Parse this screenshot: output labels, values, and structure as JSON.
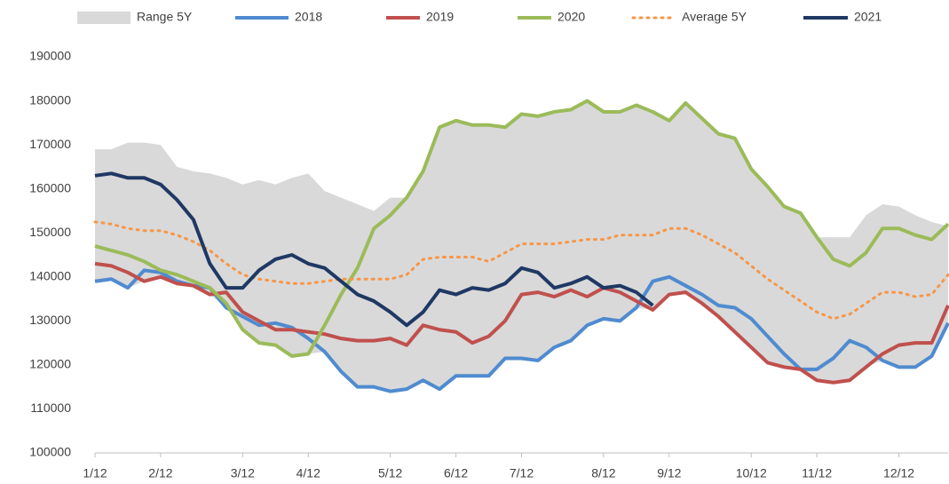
{
  "chart_data": {
    "type": "line",
    "categories": [
      "1/12",
      null,
      null,
      null,
      "2/12",
      null,
      null,
      null,
      null,
      "3/12",
      null,
      null,
      null,
      "4/12",
      null,
      null,
      null,
      null,
      "5/12",
      null,
      null,
      null,
      "6/12",
      null,
      null,
      null,
      "7/12",
      null,
      null,
      null,
      null,
      "8/12",
      null,
      null,
      null,
      "9/12",
      null,
      null,
      null,
      null,
      "10/12",
      null,
      null,
      null,
      "11/12",
      null,
      null,
      null,
      null,
      "12/12",
      null,
      null,
      null
    ],
    "ylim": [
      100000,
      190000
    ],
    "yticks": [
      100000,
      110000,
      120000,
      130000,
      140000,
      150000,
      160000,
      170000,
      180000,
      190000
    ],
    "grid": false,
    "legend": "top",
    "series": [
      {
        "name": "Range 5Y",
        "color": "#d9d9d9",
        "high": [
          169000,
          169000,
          170500,
          170500,
          170000,
          165000,
          164000,
          163500,
          162500,
          161000,
          162000,
          161000,
          162500,
          163500,
          159500,
          158000,
          156500,
          155000,
          158000,
          158000,
          164000,
          174000,
          175500,
          174500,
          174500,
          174000,
          177000,
          176500,
          177500,
          178000,
          180000,
          177500,
          177500,
          179000,
          177500,
          175500,
          179500,
          176000,
          172500,
          171500,
          164500,
          160500,
          156000,
          154500,
          149000,
          149000,
          149000,
          154000,
          156500,
          156000,
          154000,
          152500,
          151500
        ],
        "low": [
          139000,
          139500,
          137500,
          139000,
          140000,
          138500,
          138000,
          136000,
          133000,
          128000,
          125000,
          124500,
          122000,
          122500,
          123000,
          118500,
          115000,
          115000,
          114000,
          114500,
          116500,
          114500,
          117500,
          117500,
          117500,
          121500,
          121500,
          121000,
          124000,
          125500,
          129000,
          130500,
          130000,
          133000,
          132500,
          136000,
          136500,
          134000,
          131000,
          127500,
          124000,
          120500,
          119500,
          119000,
          116500,
          116000,
          116500,
          119500,
          121000,
          119500,
          119500,
          122000,
          129500
        ]
      },
      {
        "name": "2018",
        "color": "#4f8bd0",
        "values": [
          139000,
          139500,
          137500,
          141500,
          141000,
          139000,
          138000,
          137500,
          133000,
          131000,
          129000,
          129500,
          128500,
          126000,
          123000,
          118500,
          115000,
          115000,
          114000,
          114500,
          116500,
          114500,
          117500,
          117500,
          117500,
          121500,
          121500,
          121000,
          124000,
          125500,
          129000,
          130500,
          130000,
          133000,
          139000,
          140000,
          138000,
          136000,
          133500,
          133000,
          130500,
          126500,
          122500,
          119000,
          119000,
          121500,
          125500,
          124000,
          121000,
          119500,
          119500,
          122000,
          129500
        ]
      },
      {
        "name": "2019",
        "color": "#c0504d",
        "values": [
          143000,
          142500,
          141000,
          139000,
          140000,
          138500,
          138000,
          136000,
          136500,
          132000,
          130000,
          128000,
          128000,
          127500,
          127000,
          126000,
          125500,
          125500,
          126000,
          124500,
          129000,
          128000,
          127500,
          125000,
          126500,
          130000,
          136000,
          136500,
          135500,
          137000,
          135500,
          137500,
          136500,
          134500,
          132500,
          136000,
          136500,
          134000,
          131000,
          127500,
          124000,
          120500,
          119500,
          119000,
          116500,
          116000,
          116500,
          119500,
          122500,
          124500,
          125000,
          125000,
          133500
        ]
      },
      {
        "name": "2020",
        "color": "#9bbb59",
        "values": [
          147000,
          146000,
          145000,
          143500,
          141500,
          140500,
          139000,
          137500,
          134000,
          128000,
          125000,
          124500,
          122000,
          122500,
          129000,
          136000,
          142000,
          151000,
          154000,
          158000,
          164000,
          174000,
          175500,
          174500,
          174500,
          174000,
          177000,
          176500,
          177500,
          178000,
          180000,
          177500,
          177500,
          179000,
          177500,
          175500,
          179500,
          176000,
          172500,
          171500,
          164500,
          160500,
          156000,
          154500,
          149000,
          144000,
          142500,
          145500,
          151000,
          151000,
          149500,
          148500,
          152000
        ]
      },
      {
        "name": "Average 5Y",
        "color": "#f79646",
        "dashed": true,
        "values": [
          152500,
          152000,
          151000,
          150500,
          150500,
          149500,
          148000,
          146000,
          143000,
          140500,
          139500,
          139000,
          138500,
          138500,
          139000,
          139500,
          139500,
          139500,
          139500,
          140500,
          144000,
          144500,
          144500,
          144500,
          143500,
          145500,
          147500,
          147500,
          147500,
          148000,
          148500,
          148500,
          149500,
          149500,
          149500,
          151000,
          151000,
          149500,
          147500,
          145500,
          142500,
          139500,
          137000,
          134500,
          132000,
          130500,
          131500,
          134000,
          136500,
          136500,
          135500,
          136000,
          140500
        ]
      },
      {
        "name": "2021",
        "color": "#1f3864",
        "values": [
          163000,
          163500,
          162500,
          162500,
          161000,
          157500,
          153000,
          143000,
          137500,
          137500,
          141500,
          144000,
          145000,
          143000,
          142000,
          139000,
          136000,
          134500,
          132000,
          129000,
          132000,
          137000,
          136000,
          137500,
          137000,
          138500,
          142000,
          141000,
          137500,
          138500,
          140000,
          137500,
          138000,
          136500,
          133500,
          null,
          null,
          null,
          null,
          null,
          null,
          null,
          null,
          null,
          null,
          null,
          null,
          null,
          null,
          null,
          null,
          null,
          null
        ]
      }
    ]
  }
}
